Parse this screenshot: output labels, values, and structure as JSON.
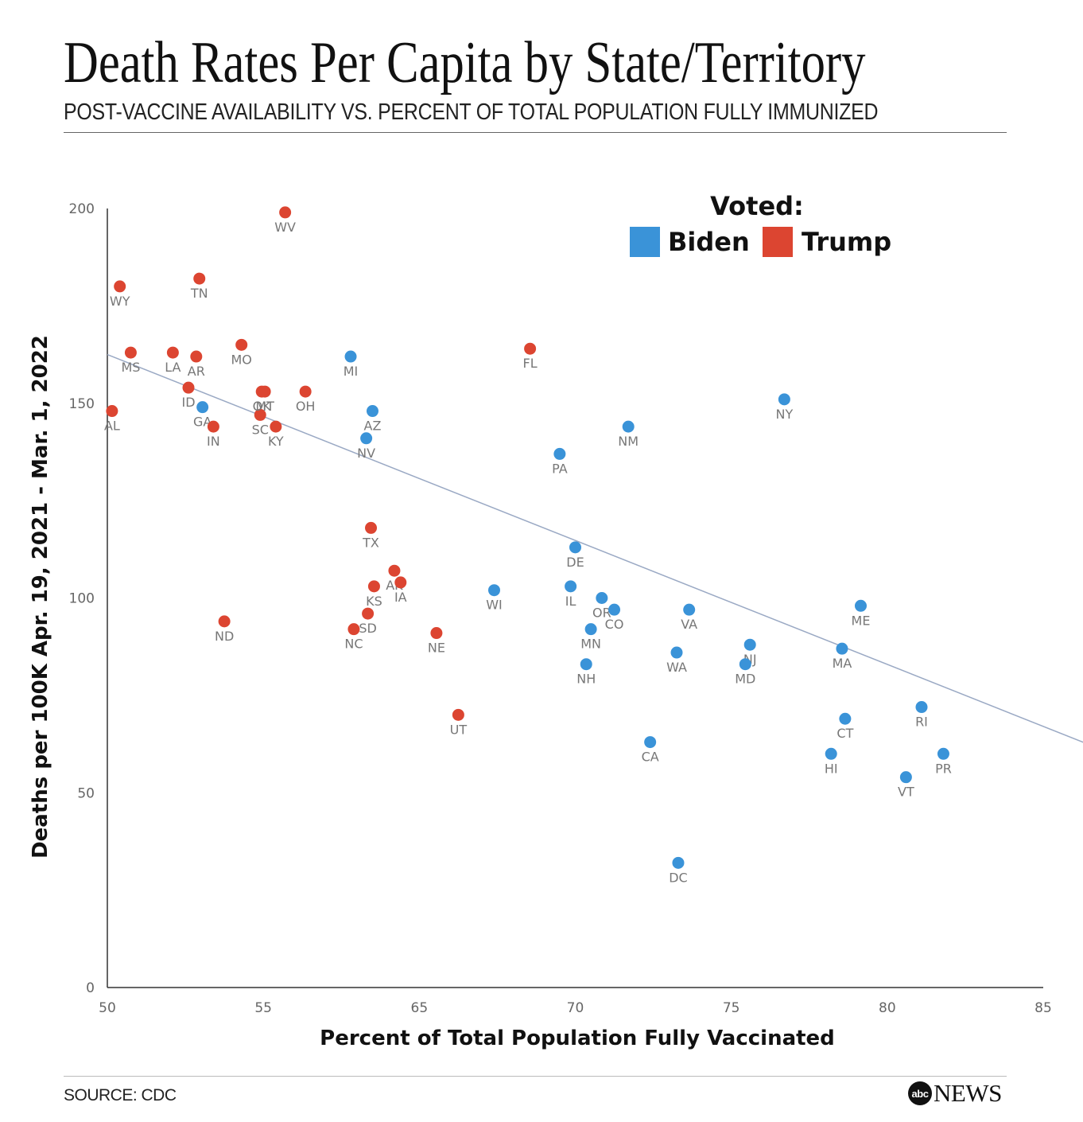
{
  "header": {
    "title": "Death Rates Per Capita by State/Territory",
    "subtitle": "POST-VACCINE AVAILABILITY VS. PERCENT OF TOTAL POPULATION FULLY IMMUNIZED"
  },
  "footer": {
    "source": "SOURCE: CDC",
    "brand_mark": "abc",
    "brand_name": "NEWS"
  },
  "colors": {
    "biden": "#3a93d8",
    "trump": "#dc4531",
    "trend": "#9aa9c4",
    "axis": "#333333",
    "tick_label": "#666666",
    "point_label": "#777777"
  },
  "chart_data": {
    "type": "scatter",
    "xlabel": "Percent of Total Population Fully Vaccinated",
    "ylabel": "Deaths per 100K Apr. 19, 2021 - Mar. 1, 2022",
    "xlim": [
      50,
      85
    ],
    "ylim": [
      0,
      200
    ],
    "x_ticks": [
      "50",
      "55",
      "65",
      "70",
      "75",
      "80",
      "85"
    ],
    "y_ticks": [
      0,
      50,
      100,
      150,
      200
    ],
    "grid": false,
    "legend": {
      "title": "Voted:",
      "placement": "top-right",
      "entries": [
        {
          "key": "biden",
          "label": "Biden"
        },
        {
          "key": "trump",
          "label": "Trump"
        }
      ]
    },
    "trend_line": {
      "x": [
        50.0,
        83.0
      ],
      "y": [
        162.5,
        57.5
      ]
    },
    "series": [
      {
        "key": "biden",
        "name": "Biden",
        "points": [
          {
            "label": "GA",
            "x": 53.05,
            "y": 149
          },
          {
            "label": "MI",
            "x": 57.8,
            "y": 162
          },
          {
            "label": "AZ",
            "x": 58.5,
            "y": 148
          },
          {
            "label": "NV",
            "x": 58.3,
            "y": 141
          },
          {
            "label": "WI",
            "x": 62.4,
            "y": 102
          },
          {
            "label": "PA",
            "x": 64.5,
            "y": 137
          },
          {
            "label": "DE",
            "x": 65.0,
            "y": 113
          },
          {
            "label": "IL",
            "x": 64.85,
            "y": 103
          },
          {
            "label": "OR",
            "x": 65.85,
            "y": 100
          },
          {
            "label": "CO",
            "x": 66.25,
            "y": 97
          },
          {
            "label": "MN",
            "x": 65.5,
            "y": 92
          },
          {
            "label": "NH",
            "x": 65.35,
            "y": 83
          },
          {
            "label": "NM",
            "x": 66.7,
            "y": 144
          },
          {
            "label": "CA",
            "x": 67.4,
            "y": 63
          },
          {
            "label": "VA",
            "x": 68.65,
            "y": 97
          },
          {
            "label": "WA",
            "x": 68.25,
            "y": 86
          },
          {
            "label": "DC",
            "x": 68.3,
            "y": 32
          },
          {
            "label": "NJ",
            "x": 70.6,
            "y": 88
          },
          {
            "label": "MD",
            "x": 70.45,
            "y": 83
          },
          {
            "label": "NY",
            "x": 71.7,
            "y": 151
          },
          {
            "label": "HI",
            "x": 73.2,
            "y": 60
          },
          {
            "label": "MA",
            "x": 73.55,
            "y": 87
          },
          {
            "label": "CT",
            "x": 73.65,
            "y": 69
          },
          {
            "label": "ME",
            "x": 74.15,
            "y": 98
          },
          {
            "label": "VT",
            "x": 75.6,
            "y": 54
          },
          {
            "label": "RI",
            "x": 76.1,
            "y": 72
          },
          {
            "label": "PR",
            "x": 76.8,
            "y": 60
          }
        ]
      },
      {
        "key": "trump",
        "name": "Trump",
        "points": [
          {
            "label": "AL",
            "x": 50.15,
            "y": 148
          },
          {
            "label": "WY",
            "x": 50.4,
            "y": 180
          },
          {
            "label": "MS",
            "x": 50.75,
            "y": 163
          },
          {
            "label": "LA",
            "x": 52.1,
            "y": 163
          },
          {
            "label": "AR",
            "x": 52.85,
            "y": 162
          },
          {
            "label": "ID",
            "x": 52.6,
            "y": 154
          },
          {
            "label": "IN",
            "x": 53.4,
            "y": 144
          },
          {
            "label": "TN",
            "x": 52.95,
            "y": 182
          },
          {
            "label": "ND",
            "x": 53.75,
            "y": 94
          },
          {
            "label": "MO",
            "x": 54.3,
            "y": 165
          },
          {
            "label": "MT",
            "x": 55.05,
            "y": 153
          },
          {
            "label": "SC",
            "x": 54.9,
            "y": 147
          },
          {
            "label": "OK",
            "x": 54.95,
            "y": 153
          },
          {
            "label": "KY",
            "x": 55.4,
            "y": 144
          },
          {
            "label": "WV",
            "x": 55.7,
            "y": 199
          },
          {
            "label": "OH",
            "x": 56.35,
            "y": 153
          },
          {
            "label": "NC",
            "x": 57.9,
            "y": 92
          },
          {
            "label": "SD",
            "x": 58.35,
            "y": 96
          },
          {
            "label": "TX",
            "x": 58.45,
            "y": 118
          },
          {
            "label": "KS",
            "x": 58.55,
            "y": 103
          },
          {
            "label": "AK",
            "x": 59.2,
            "y": 107
          },
          {
            "label": "IA",
            "x": 59.4,
            "y": 104
          },
          {
            "label": "NE",
            "x": 60.55,
            "y": 91
          },
          {
            "label": "UT",
            "x": 61.25,
            "y": 70
          },
          {
            "label": "FL",
            "x": 63.55,
            "y": 164
          }
        ]
      }
    ]
  }
}
